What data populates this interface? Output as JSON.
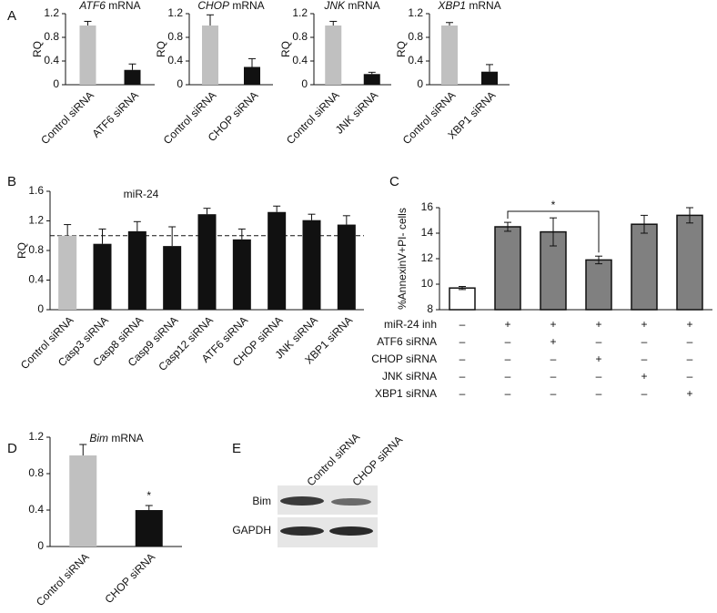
{
  "panel_labels": [
    "A",
    "B",
    "C",
    "D",
    "E"
  ],
  "chart_data": [
    {
      "type": "bar",
      "title_italic": "ATF6",
      "title": "mRNA",
      "ylabel": "RQ",
      "categories": [
        "Control siRNA",
        "ATF6 siRNA"
      ],
      "values": [
        1.0,
        0.25
      ],
      "errors": [
        0.07,
        0.1
      ],
      "colors": [
        "#c0c0c0",
        "#111111"
      ],
      "ylim": [
        0,
        1.2
      ],
      "yticks": [
        0,
        0.4,
        0.8,
        1.2
      ]
    },
    {
      "type": "bar",
      "title_italic": "CHOP",
      "title": "mRNA",
      "ylabel": "RQ",
      "categories": [
        "Control siRNA",
        "CHOP siRNA"
      ],
      "values": [
        1.0,
        0.3
      ],
      "errors": [
        0.18,
        0.14
      ],
      "colors": [
        "#c0c0c0",
        "#111111"
      ],
      "ylim": [
        0,
        1.2
      ],
      "yticks": [
        0,
        0.4,
        0.8,
        1.2
      ]
    },
    {
      "type": "bar",
      "title_italic": "JNK",
      "title": "mRNA",
      "ylabel": "RQ",
      "categories": [
        "Control siRNA",
        "JNK siRNA"
      ],
      "values": [
        1.0,
        0.18
      ],
      "errors": [
        0.07,
        0.03
      ],
      "colors": [
        "#c0c0c0",
        "#111111"
      ],
      "ylim": [
        0,
        1.2
      ],
      "yticks": [
        0,
        0.4,
        0.8,
        1.2
      ]
    },
    {
      "type": "bar",
      "title_italic": "XBP1",
      "title": "mRNA",
      "ylabel": "RQ",
      "categories": [
        "Control siRNA",
        "XBP1 siRNA"
      ],
      "values": [
        1.0,
        0.22
      ],
      "errors": [
        0.05,
        0.12
      ],
      "colors": [
        "#c0c0c0",
        "#111111"
      ],
      "ylim": [
        0,
        1.2
      ],
      "yticks": [
        0,
        0.4,
        0.8,
        1.2
      ]
    },
    {
      "type": "bar",
      "title": "miR-24",
      "ylabel": "RQ",
      "categories": [
        "Control siRNA",
        "Casp3 siRNA",
        "Casp8 siRNA",
        "Casp9 siRNA",
        "Casp12 siRNA",
        "ATF6 siRNA",
        "CHOP siRNA",
        "JNK siRNA",
        "XBP1 siRNA"
      ],
      "values": [
        1.0,
        0.89,
        1.06,
        0.86,
        1.29,
        0.95,
        1.32,
        1.21,
        1.15
      ],
      "errors": [
        0.15,
        0.2,
        0.13,
        0.26,
        0.08,
        0.14,
        0.08,
        0.08,
        0.12
      ],
      "colors": [
        "#c0c0c0",
        "#111111",
        "#111111",
        "#111111",
        "#111111",
        "#111111",
        "#111111",
        "#111111",
        "#111111"
      ],
      "ylim": [
        0,
        1.6
      ],
      "yticks": [
        0,
        0.4,
        0.8,
        1.2,
        1.6
      ],
      "reference_line": 1.0
    },
    {
      "type": "bar",
      "ylabel": "%AnnexinV+PI- cells",
      "values": [
        9.7,
        14.5,
        14.1,
        11.9,
        14.7,
        15.4
      ],
      "errors": [
        0.12,
        0.35,
        1.1,
        0.3,
        0.7,
        0.6
      ],
      "colors": [
        "#ffffff",
        "#808080",
        "#808080",
        "#808080",
        "#808080",
        "#808080"
      ],
      "ylim": [
        8,
        16
      ],
      "yticks": [
        8,
        10,
        12,
        14,
        16
      ],
      "annotation": "*",
      "table": [
        {
          "label": "miR-24 inh",
          "cells": [
            "–",
            "+",
            "+",
            "+",
            "+",
            "+"
          ]
        },
        {
          "label": "ATF6 siRNA",
          "cells": [
            "–",
            "–",
            "+",
            "–",
            "–",
            "–"
          ]
        },
        {
          "label": "CHOP siRNA",
          "cells": [
            "–",
            "–",
            "–",
            "+",
            "–",
            "–"
          ]
        },
        {
          "label": "JNK siRNA",
          "cells": [
            "–",
            "–",
            "–",
            "–",
            "+",
            "–"
          ]
        },
        {
          "label": "XBP1 siRNA",
          "cells": [
            "–",
            "–",
            "–",
            "–",
            "–",
            "+"
          ]
        }
      ]
    },
    {
      "type": "bar",
      "title_italic": "Bim",
      "title": "mRNA",
      "categories": [
        "Control siRNA",
        "CHOP siRNA"
      ],
      "values": [
        1.0,
        0.4
      ],
      "errors": [
        0.12,
        0.05
      ],
      "colors": [
        "#c0c0c0",
        "#111111"
      ],
      "ylim": [
        0,
        1.2
      ],
      "yticks": [
        0,
        0.4,
        0.8,
        1.2
      ],
      "annotation": "*"
    }
  ],
  "blot": {
    "lanes": [
      "Control siRNA",
      "CHOP siRNA"
    ],
    "rows": [
      "Bim",
      "GAPDH"
    ]
  }
}
